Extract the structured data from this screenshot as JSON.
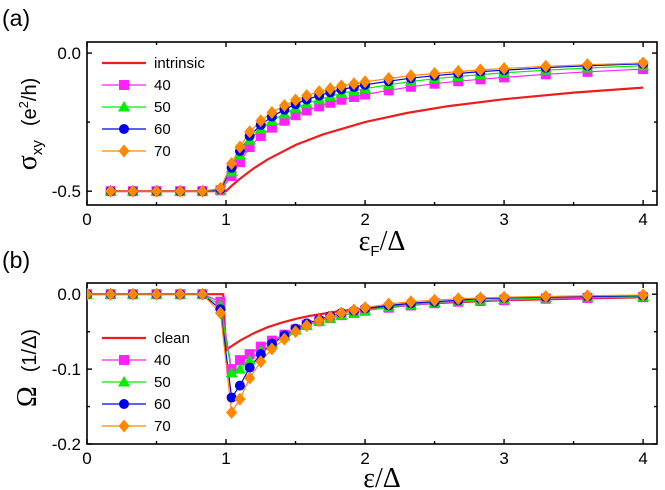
{
  "chart_data": [
    {
      "type": "line",
      "panel_label": "(a)",
      "xlabel": {
        "main": "ε",
        "sub": "F",
        "suffix": "/Δ"
      },
      "ylabel": {
        "main": "σ",
        "sub": "xy",
        "unit_pre": "(e",
        "unit_sup": "2",
        "unit_post": "/h)"
      },
      "xlim": [
        0,
        4.1
      ],
      "ylim": [
        -0.55,
        0.04
      ],
      "xticks": [
        0,
        1,
        2,
        3,
        4
      ],
      "xtick_labels": [
        "0",
        "1",
        "2",
        "3",
        "4"
      ],
      "yticks": [
        0,
        -0.5
      ],
      "ytick_labels": [
        "0.0",
        "-0.5"
      ],
      "legend": [
        "intrinsic",
        "40",
        "50",
        "60",
        "70"
      ],
      "series": [
        {
          "name": "intrinsic",
          "color": "#ee1c1c",
          "marker": "none",
          "x": [
            0.15,
            0.3,
            0.5,
            0.7,
            0.9,
            1.0,
            1.05,
            1.1,
            1.2,
            1.3,
            1.5,
            1.7,
            2.0,
            2.3,
            2.6,
            3.0,
            3.5,
            4.0
          ],
          "y": [
            -0.5,
            -0.5,
            -0.5,
            -0.5,
            -0.5,
            -0.5,
            -0.476,
            -0.455,
            -0.417,
            -0.385,
            -0.333,
            -0.294,
            -0.25,
            -0.217,
            -0.192,
            -0.167,
            -0.143,
            -0.125
          ]
        },
        {
          "name": "40",
          "color": "#ff22ff",
          "marker": "square",
          "x": [
            0.17,
            0.33,
            0.5,
            0.67,
            0.83,
            0.96,
            1.04,
            1.1,
            1.17,
            1.25,
            1.33,
            1.42,
            1.5,
            1.58,
            1.67,
            1.75,
            1.83,
            1.92,
            2.0,
            2.17,
            2.33,
            2.5,
            2.67,
            2.83,
            3.0,
            3.3,
            3.6,
            4.0
          ],
          "y": [
            -0.5,
            -0.5,
            -0.5,
            -0.5,
            -0.5,
            -0.497,
            -0.445,
            -0.395,
            -0.34,
            -0.3,
            -0.27,
            -0.245,
            -0.225,
            -0.208,
            -0.193,
            -0.18,
            -0.169,
            -0.159,
            -0.15,
            -0.135,
            -0.122,
            -0.111,
            -0.102,
            -0.095,
            -0.088,
            -0.077,
            -0.068,
            -0.058
          ]
        },
        {
          "name": "50",
          "color": "#00ee00",
          "marker": "triangle",
          "x": [
            0.17,
            0.33,
            0.5,
            0.67,
            0.83,
            0.96,
            1.04,
            1.1,
            1.17,
            1.25,
            1.33,
            1.42,
            1.5,
            1.58,
            1.67,
            1.75,
            1.83,
            1.92,
            2.0,
            2.17,
            2.33,
            2.5,
            2.67,
            2.83,
            3.0,
            3.3,
            3.6,
            4.0
          ],
          "y": [
            -0.5,
            -0.5,
            -0.5,
            -0.5,
            -0.5,
            -0.495,
            -0.43,
            -0.37,
            -0.315,
            -0.275,
            -0.245,
            -0.22,
            -0.2,
            -0.183,
            -0.169,
            -0.157,
            -0.146,
            -0.137,
            -0.129,
            -0.115,
            -0.103,
            -0.093,
            -0.085,
            -0.078,
            -0.072,
            -0.062,
            -0.054,
            -0.046
          ]
        },
        {
          "name": "60",
          "color": "#0000ee",
          "marker": "circle",
          "x": [
            0.17,
            0.33,
            0.5,
            0.67,
            0.83,
            0.96,
            1.04,
            1.1,
            1.17,
            1.25,
            1.33,
            1.42,
            1.5,
            1.58,
            1.67,
            1.75,
            1.83,
            1.92,
            2.0,
            2.17,
            2.33,
            2.5,
            2.67,
            2.83,
            3.0,
            3.3,
            3.6,
            4.0
          ],
          "y": [
            -0.5,
            -0.5,
            -0.5,
            -0.5,
            -0.5,
            -0.493,
            -0.415,
            -0.355,
            -0.3,
            -0.26,
            -0.23,
            -0.205,
            -0.185,
            -0.168,
            -0.154,
            -0.142,
            -0.132,
            -0.123,
            -0.115,
            -0.102,
            -0.091,
            -0.082,
            -0.074,
            -0.067,
            -0.062,
            -0.053,
            -0.046,
            -0.039
          ]
        },
        {
          "name": "70",
          "color": "#ff8800",
          "marker": "diamond",
          "x": [
            0.17,
            0.33,
            0.5,
            0.67,
            0.83,
            0.96,
            1.04,
            1.1,
            1.17,
            1.25,
            1.33,
            1.42,
            1.5,
            1.58,
            1.67,
            1.75,
            1.83,
            1.92,
            2.0,
            2.17,
            2.33,
            2.5,
            2.67,
            2.83,
            3.0,
            3.3,
            3.6,
            4.0
          ],
          "y": [
            -0.5,
            -0.5,
            -0.5,
            -0.5,
            -0.5,
            -0.49,
            -0.4,
            -0.34,
            -0.285,
            -0.245,
            -0.215,
            -0.19,
            -0.17,
            -0.154,
            -0.14,
            -0.129,
            -0.119,
            -0.111,
            -0.104,
            -0.092,
            -0.082,
            -0.074,
            -0.067,
            -0.061,
            -0.056,
            -0.048,
            -0.042,
            -0.036
          ]
        }
      ]
    },
    {
      "type": "line",
      "panel_label": "(b)",
      "xlabel": {
        "main": "ε",
        "sub": "",
        "suffix": "/Δ"
      },
      "ylabel": {
        "main": "Ω",
        "sub": "",
        "unit_pre": "(1/Δ)",
        "unit_sup": "",
        "unit_post": ""
      },
      "xlim": [
        0,
        4.1
      ],
      "ylim": [
        -0.2,
        0.015
      ],
      "xticks": [
        0,
        1,
        2,
        3,
        4
      ],
      "xtick_labels": [
        "0",
        "1",
        "2",
        "3",
        "4"
      ],
      "yticks": [
        0,
        -0.1,
        -0.2
      ],
      "ytick_labels": [
        "0.0",
        "-0.1",
        "-0.2"
      ],
      "legend": [
        "clean",
        "40",
        "50",
        "60",
        "70"
      ],
      "series": [
        {
          "name": "clean",
          "color": "#ee1c1c",
          "marker": "none",
          "x": [
            0.0,
            0.2,
            0.4,
            0.6,
            0.8,
            0.98,
            1.0,
            1.02,
            1.05,
            1.1,
            1.2,
            1.3,
            1.4,
            1.5,
            1.6,
            1.8,
            2.0,
            2.3,
            2.6,
            3.0,
            3.5,
            4.0
          ],
          "y": [
            0,
            0,
            0,
            0,
            0,
            0,
            -0.075,
            -0.072,
            -0.068,
            -0.062,
            -0.052,
            -0.044,
            -0.038,
            -0.033,
            -0.029,
            -0.023,
            -0.019,
            -0.014,
            -0.011,
            -0.008,
            -0.006,
            -0.004
          ]
        },
        {
          "name": "40",
          "color": "#ff22ff",
          "marker": "square",
          "x": [
            0.0,
            0.17,
            0.33,
            0.5,
            0.67,
            0.83,
            0.96,
            1.04,
            1.1,
            1.17,
            1.25,
            1.33,
            1.42,
            1.5,
            1.58,
            1.67,
            1.75,
            1.83,
            1.92,
            2.0,
            2.17,
            2.33,
            2.5,
            2.67,
            2.83,
            3.0,
            3.3,
            3.6,
            4.0
          ],
          "y": [
            0,
            0,
            0,
            0,
            0,
            0,
            -0.01,
            -0.1,
            -0.088,
            -0.08,
            -0.07,
            -0.062,
            -0.054,
            -0.047,
            -0.041,
            -0.036,
            -0.032,
            -0.028,
            -0.025,
            -0.022,
            -0.018,
            -0.015,
            -0.012,
            -0.01,
            -0.009,
            -0.008,
            -0.006,
            -0.005,
            -0.004
          ]
        },
        {
          "name": "50",
          "color": "#00ee00",
          "marker": "triangle",
          "x": [
            0.0,
            0.17,
            0.33,
            0.5,
            0.67,
            0.83,
            0.96,
            1.04,
            1.1,
            1.17,
            1.25,
            1.33,
            1.42,
            1.5,
            1.58,
            1.67,
            1.75,
            1.83,
            1.92,
            2.0,
            2.17,
            2.33,
            2.5,
            2.67,
            2.83,
            3.0,
            3.3,
            3.6,
            4.0
          ],
          "y": [
            0,
            0,
            0,
            0,
            0,
            0,
            -0.015,
            -0.105,
            -0.1,
            -0.088,
            -0.076,
            -0.066,
            -0.056,
            -0.048,
            -0.042,
            -0.036,
            -0.032,
            -0.028,
            -0.025,
            -0.022,
            -0.017,
            -0.014,
            -0.011,
            -0.009,
            -0.008,
            -0.007,
            -0.005,
            -0.004,
            -0.003
          ]
        },
        {
          "name": "60",
          "color": "#0000ee",
          "marker": "circle",
          "x": [
            0.0,
            0.17,
            0.33,
            0.5,
            0.67,
            0.83,
            0.96,
            1.04,
            1.1,
            1.17,
            1.25,
            1.33,
            1.42,
            1.5,
            1.58,
            1.67,
            1.75,
            1.83,
            1.92,
            2.0,
            2.17,
            2.33,
            2.5,
            2.67,
            2.83,
            3.0,
            3.3,
            3.6,
            4.0
          ],
          "y": [
            0,
            0,
            0,
            0,
            0,
            0,
            -0.02,
            -0.138,
            -0.122,
            -0.098,
            -0.08,
            -0.066,
            -0.055,
            -0.046,
            -0.039,
            -0.034,
            -0.029,
            -0.025,
            -0.022,
            -0.019,
            -0.015,
            -0.012,
            -0.01,
            -0.008,
            -0.006,
            -0.005,
            -0.004,
            -0.003,
            -0.002
          ]
        },
        {
          "name": "70",
          "color": "#ff8800",
          "marker": "diamond",
          "x": [
            0.0,
            0.17,
            0.33,
            0.5,
            0.67,
            0.83,
            0.96,
            1.04,
            1.1,
            1.17,
            1.25,
            1.33,
            1.42,
            1.5,
            1.58,
            1.67,
            1.75,
            1.83,
            1.92,
            2.0,
            2.17,
            2.33,
            2.5,
            2.67,
            2.83,
            3.0,
            3.3,
            3.6,
            4.0
          ],
          "y": [
            0,
            0,
            0,
            0,
            0,
            0,
            -0.025,
            -0.158,
            -0.14,
            -0.112,
            -0.09,
            -0.073,
            -0.06,
            -0.05,
            -0.042,
            -0.035,
            -0.03,
            -0.025,
            -0.021,
            -0.018,
            -0.013,
            -0.01,
            -0.008,
            -0.006,
            -0.005,
            -0.004,
            -0.003,
            -0.002,
            -0.001
          ]
        }
      ]
    }
  ]
}
